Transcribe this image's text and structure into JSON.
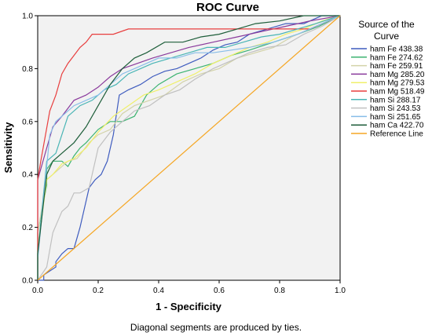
{
  "chart_data": {
    "type": "line",
    "title": "ROC Curve",
    "xlabel": "1 - Specificity",
    "ylabel": "Sensitivity",
    "xlim": [
      0,
      1
    ],
    "ylim": [
      0,
      1
    ],
    "xticks": [
      "0.0",
      "0.2",
      "0.4",
      "0.6",
      "0.8",
      "1.0"
    ],
    "yticks": [
      "0.0",
      "0.2",
      "0.4",
      "0.6",
      "0.8",
      "1.0"
    ],
    "grid": false,
    "background": "#f2f2f2",
    "legend": {
      "title_line1": "Source of the",
      "title_line2": "Curve",
      "placement": "right"
    },
    "footnote": "Diagonal segments are produced by ties.",
    "series": [
      {
        "name": "ham Fe 438.38",
        "color": "#3f5cbf",
        "x": [
          0,
          0.02,
          0.02,
          0.06,
          0.06,
          0.08,
          0.1,
          0.12,
          0.14,
          0.17,
          0.19,
          0.21,
          0.23,
          0.25,
          0.27,
          0.3,
          0.34,
          0.38,
          0.42,
          0.46,
          0.5,
          0.54,
          0.58,
          0.62,
          0.66,
          0.7,
          0.76,
          0.82,
          0.88,
          0.94,
          1.0
        ],
        "y": [
          0,
          0,
          0.02,
          0.05,
          0.07,
          0.1,
          0.12,
          0.12,
          0.2,
          0.35,
          0.38,
          0.4,
          0.45,
          0.55,
          0.7,
          0.72,
          0.74,
          0.77,
          0.79,
          0.8,
          0.82,
          0.84,
          0.87,
          0.89,
          0.9,
          0.93,
          0.95,
          0.97,
          0.97,
          1.0,
          1.0
        ]
      },
      {
        "name": "ham Fe 274.62",
        "color": "#3cb371",
        "x": [
          0,
          0.0,
          0.03,
          0.03,
          0.05,
          0.08,
          0.1,
          0.12,
          0.14,
          0.16,
          0.2,
          0.24,
          0.28,
          0.32,
          0.36,
          0.4,
          0.46,
          0.52,
          0.58,
          0.64,
          0.7,
          0.78,
          0.86,
          0.93,
          1.0
        ],
        "y": [
          0,
          0.18,
          0.36,
          0.42,
          0.45,
          0.45,
          0.43,
          0.47,
          0.5,
          0.52,
          0.57,
          0.6,
          0.6,
          0.62,
          0.7,
          0.74,
          0.78,
          0.8,
          0.82,
          0.85,
          0.87,
          0.9,
          0.93,
          0.96,
          1.0
        ]
      },
      {
        "name": "ham Fe 259.91",
        "color": "#d3d3a9",
        "x": [
          0,
          0.0,
          0.03,
          0.05,
          0.08,
          0.1,
          0.13,
          0.17,
          0.2,
          0.24,
          0.28,
          0.32,
          0.37,
          0.42,
          0.48,
          0.54,
          0.6,
          0.66,
          0.72,
          0.78,
          0.84,
          0.9,
          1.0
        ],
        "y": [
          0,
          0.18,
          0.38,
          0.4,
          0.43,
          0.45,
          0.46,
          0.52,
          0.55,
          0.57,
          0.63,
          0.66,
          0.68,
          0.7,
          0.75,
          0.78,
          0.8,
          0.84,
          0.86,
          0.88,
          0.92,
          0.95,
          1.0
        ]
      },
      {
        "name": "ham Mg 285.20",
        "color": "#8a3a9c",
        "x": [
          0,
          0.0,
          0.03,
          0.05,
          0.08,
          0.12,
          0.16,
          0.2,
          0.24,
          0.28,
          0.33,
          0.38,
          0.44,
          0.5,
          0.58,
          0.66,
          0.74,
          0.82,
          0.9,
          1.0
        ],
        "y": [
          0,
          0.38,
          0.5,
          0.58,
          0.62,
          0.68,
          0.7,
          0.73,
          0.77,
          0.8,
          0.82,
          0.84,
          0.86,
          0.88,
          0.9,
          0.92,
          0.94,
          0.96,
          0.98,
          1.0
        ]
      },
      {
        "name": "ham Mg 279.53",
        "color": "#f0f06a",
        "x": [
          0,
          0.0,
          0.03,
          0.05,
          0.08,
          0.12,
          0.16,
          0.2,
          0.25,
          0.3,
          0.35,
          0.4,
          0.46,
          0.52,
          0.58,
          0.64,
          0.7,
          0.76,
          0.82,
          0.88,
          0.94,
          1.0
        ],
        "y": [
          0,
          0.12,
          0.38,
          0.4,
          0.44,
          0.46,
          0.5,
          0.56,
          0.62,
          0.66,
          0.7,
          0.72,
          0.75,
          0.78,
          0.82,
          0.85,
          0.88,
          0.9,
          0.93,
          0.95,
          0.98,
          1.0
        ]
      },
      {
        "name": "ham Mg 518.49",
        "color": "#e83e3e",
        "x": [
          0,
          0.0,
          0.01,
          0.04,
          0.06,
          0.08,
          0.1,
          0.12,
          0.14,
          0.16,
          0.18,
          0.2,
          0.25,
          0.3,
          0.35,
          0.4,
          0.5,
          0.6,
          0.7,
          0.8,
          0.9,
          1.0
        ],
        "y": [
          0,
          0.38,
          0.45,
          0.64,
          0.7,
          0.78,
          0.82,
          0.85,
          0.88,
          0.9,
          0.93,
          0.93,
          0.93,
          0.95,
          0.95,
          0.95,
          0.95,
          0.95,
          0.95,
          0.95,
          0.95,
          1.0
        ]
      },
      {
        "name": "ham Si 288.17",
        "color": "#49b5b5",
        "x": [
          0,
          0.0,
          0.03,
          0.06,
          0.08,
          0.1,
          0.14,
          0.18,
          0.22,
          0.26,
          0.3,
          0.34,
          0.38,
          0.44,
          0.5,
          0.56,
          0.62,
          0.68,
          0.74,
          0.8,
          0.86,
          0.92,
          1.0
        ],
        "y": [
          0,
          0.1,
          0.45,
          0.48,
          0.55,
          0.62,
          0.66,
          0.68,
          0.72,
          0.74,
          0.78,
          0.8,
          0.82,
          0.84,
          0.86,
          0.88,
          0.88,
          0.9,
          0.92,
          0.93,
          0.95,
          0.97,
          1.0
        ]
      },
      {
        "name": "ham Si 243.53",
        "color": "#c0c0c0",
        "x": [
          0,
          0.03,
          0.05,
          0.08,
          0.1,
          0.12,
          0.14,
          0.17,
          0.2,
          0.24,
          0.28,
          0.32,
          0.37,
          0.42,
          0.47,
          0.52,
          0.58,
          0.64,
          0.7,
          0.76,
          0.82,
          0.88,
          0.94,
          1.0
        ],
        "y": [
          0,
          0.05,
          0.18,
          0.26,
          0.28,
          0.33,
          0.33,
          0.35,
          0.5,
          0.56,
          0.6,
          0.64,
          0.66,
          0.7,
          0.72,
          0.76,
          0.8,
          0.83,
          0.86,
          0.88,
          0.89,
          0.93,
          0.96,
          1.0
        ]
      },
      {
        "name": "ham Si 251.65",
        "color": "#87bde8",
        "x": [
          0,
          0.0,
          0.04,
          0.06,
          0.08,
          0.12,
          0.16,
          0.2,
          0.24,
          0.28,
          0.32,
          0.36,
          0.4,
          0.46,
          0.52,
          0.58,
          0.64,
          0.7,
          0.78,
          0.86,
          0.94,
          1.0
        ],
        "y": [
          0,
          0.08,
          0.55,
          0.6,
          0.62,
          0.66,
          0.68,
          0.7,
          0.74,
          0.78,
          0.8,
          0.82,
          0.84,
          0.84,
          0.86,
          0.86,
          0.87,
          0.88,
          0.9,
          0.93,
          0.97,
          1.0
        ]
      },
      {
        "name": "ham Ca 422.70",
        "color": "#1e5e3a",
        "x": [
          0,
          0.0,
          0.03,
          0.05,
          0.08,
          0.12,
          0.16,
          0.2,
          0.24,
          0.28,
          0.32,
          0.36,
          0.42,
          0.48,
          0.54,
          0.6,
          0.66,
          0.72,
          0.8,
          0.88,
          0.94,
          1.0
        ],
        "y": [
          0,
          0.1,
          0.4,
          0.45,
          0.48,
          0.52,
          0.58,
          0.66,
          0.74,
          0.8,
          0.84,
          0.86,
          0.9,
          0.9,
          0.92,
          0.93,
          0.95,
          0.97,
          0.98,
          1.0,
          1.0,
          1.0
        ]
      },
      {
        "name": "Reference Line",
        "color": "#f5a623",
        "x": [
          0,
          1
        ],
        "y": [
          0,
          1
        ]
      }
    ]
  }
}
